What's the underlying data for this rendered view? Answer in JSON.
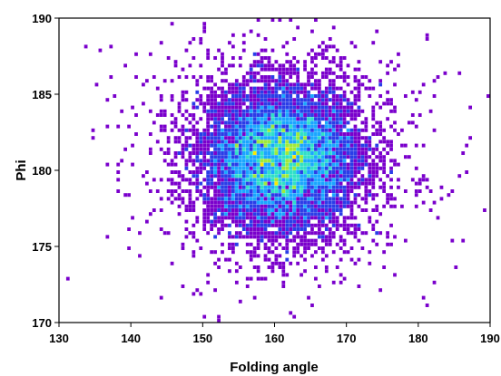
{
  "chart_data": {
    "type": "heatmap",
    "title": "",
    "xlabel": "Folding angle",
    "ylabel": "Phi",
    "xlim": [
      130,
      190
    ],
    "ylim": [
      170,
      190
    ],
    "x_ticks": [
      130,
      140,
      150,
      160,
      170,
      180,
      190
    ],
    "y_ticks": [
      170,
      175,
      180,
      185,
      190
    ],
    "x_tick_labels": [
      "130",
      "140",
      "150",
      "160",
      "170",
      "180",
      "190"
    ],
    "y_tick_labels": [
      "170",
      "175",
      "180",
      "185",
      "190"
    ],
    "grid": false,
    "legend": "none",
    "density_peak": {
      "x": 161,
      "y": 180.8
    },
    "density_spread": {
      "x": 5.5,
      "y": 2.4
    },
    "colormap": [
      "#7a00cc",
      "#2a3de8",
      "#1aa6ff",
      "#2fe0c8",
      "#9eea3a",
      "#ffe600"
    ]
  }
}
